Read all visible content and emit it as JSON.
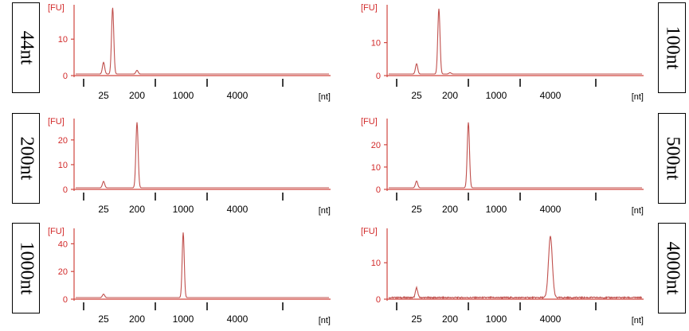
{
  "colors": {
    "axis": "#d0463f",
    "trace": "#c0504d",
    "ylabel": "#d22a2a",
    "text": "#000000"
  },
  "charts": [
    {
      "sample_label": "44nt",
      "ylabel": "[FU]",
      "xlabel": "[nt]",
      "yticks": [
        0,
        10
      ],
      "ylim": [
        0,
        19
      ],
      "xticks": [
        25,
        200,
        1000,
        4000
      ],
      "peaks": [
        {
          "x": 25,
          "y": 3.2
        },
        {
          "x": 44,
          "y": 18.2
        },
        {
          "x": 200,
          "y": 1.0
        }
      ]
    },
    {
      "sample_label": "100nt",
      "ylabel": "[FU]",
      "xlabel": "[nt]",
      "yticks": [
        0,
        10
      ],
      "ylim": [
        0,
        21
      ],
      "xticks": [
        25,
        200,
        1000,
        4000
      ],
      "peaks": [
        {
          "x": 25,
          "y": 3.1
        },
        {
          "x": 100,
          "y": 19.8
        },
        {
          "x": 200,
          "y": 0.4
        }
      ]
    },
    {
      "sample_label": "200nt",
      "ylabel": "[FU]",
      "xlabel": "[nt]",
      "yticks": [
        0,
        10,
        20
      ],
      "ylim": [
        0,
        28
      ],
      "xticks": [
        25,
        200,
        1000,
        4000
      ],
      "peaks": [
        {
          "x": 25,
          "y": 2.6
        },
        {
          "x": 200,
          "y": 26.5
        }
      ]
    },
    {
      "sample_label": "500nt",
      "ylabel": "[FU]",
      "xlabel": "[nt]",
      "yticks": [
        0,
        10,
        20
      ],
      "ylim": [
        0,
        31
      ],
      "xticks": [
        25,
        200,
        1000,
        4000
      ],
      "peaks": [
        {
          "x": 25,
          "y": 3.0
        },
        {
          "x": 500,
          "y": 29.3
        }
      ]
    },
    {
      "sample_label": "1000nt",
      "ylabel": "[FU]",
      "xlabel": "[nt]",
      "yticks": [
        0,
        20,
        40
      ],
      "ylim": [
        0,
        50
      ],
      "xticks": [
        25,
        200,
        1000,
        4000
      ],
      "peaks": [
        {
          "x": 25,
          "y": 2.5
        },
        {
          "x": 1000,
          "y": 47.0
        }
      ]
    },
    {
      "sample_label": "4000nt",
      "ylabel": "[FU]",
      "xlabel": "[nt]",
      "yticks": [
        0,
        10
      ],
      "ylim": [
        0,
        19
      ],
      "xticks": [
        25,
        200,
        1000,
        4000
      ],
      "peaks": [
        {
          "x": 25,
          "y": 2.7
        },
        {
          "x": 4000,
          "y": 16.8
        }
      ]
    }
  ],
  "chart_data": [
    {
      "type": "line",
      "xlabel": "[nt]",
      "ylabel": "[FU]",
      "x": [
        25,
        44,
        200
      ],
      "series": [
        {
          "name": "44nt",
          "values": [
            3.2,
            18.2,
            1.0
          ]
        }
      ],
      "xticks": [
        25,
        200,
        1000,
        4000
      ],
      "yticks": [
        0,
        10
      ],
      "ylim": [
        0,
        19
      ],
      "grid": false
    },
    {
      "type": "line",
      "xlabel": "[nt]",
      "ylabel": "[FU]",
      "x": [
        25,
        100,
        200
      ],
      "series": [
        {
          "name": "100nt",
          "values": [
            3.1,
            19.8,
            0.4
          ]
        }
      ],
      "xticks": [
        25,
        200,
        1000,
        4000
      ],
      "yticks": [
        0,
        10
      ],
      "ylim": [
        0,
        21
      ],
      "grid": false
    },
    {
      "type": "line",
      "xlabel": "[nt]",
      "ylabel": "[FU]",
      "x": [
        25,
        200
      ],
      "series": [
        {
          "name": "200nt",
          "values": [
            2.6,
            26.5
          ]
        }
      ],
      "xticks": [
        25,
        200,
        1000,
        4000
      ],
      "yticks": [
        0,
        10,
        20
      ],
      "ylim": [
        0,
        28
      ],
      "grid": false
    },
    {
      "type": "line",
      "xlabel": "[nt]",
      "ylabel": "[FU]",
      "x": [
        25,
        500
      ],
      "series": [
        {
          "name": "500nt",
          "values": [
            3.0,
            29.3
          ]
        }
      ],
      "xticks": [
        25,
        200,
        1000,
        4000
      ],
      "yticks": [
        0,
        10,
        20
      ],
      "ylim": [
        0,
        31
      ],
      "grid": false
    },
    {
      "type": "line",
      "xlabel": "[nt]",
      "ylabel": "[FU]",
      "x": [
        25,
        1000
      ],
      "series": [
        {
          "name": "1000nt",
          "values": [
            2.5,
            47.0
          ]
        }
      ],
      "xticks": [
        25,
        200,
        1000,
        4000
      ],
      "yticks": [
        0,
        20,
        40
      ],
      "ylim": [
        0,
        50
      ],
      "grid": false
    },
    {
      "type": "line",
      "xlabel": "[nt]",
      "ylabel": "[FU]",
      "x": [
        25,
        4000
      ],
      "series": [
        {
          "name": "4000nt",
          "values": [
            2.7,
            16.8
          ]
        }
      ],
      "xticks": [
        25,
        200,
        1000,
        4000
      ],
      "yticks": [
        0,
        10
      ],
      "ylim": [
        0,
        19
      ],
      "grid": false
    }
  ]
}
